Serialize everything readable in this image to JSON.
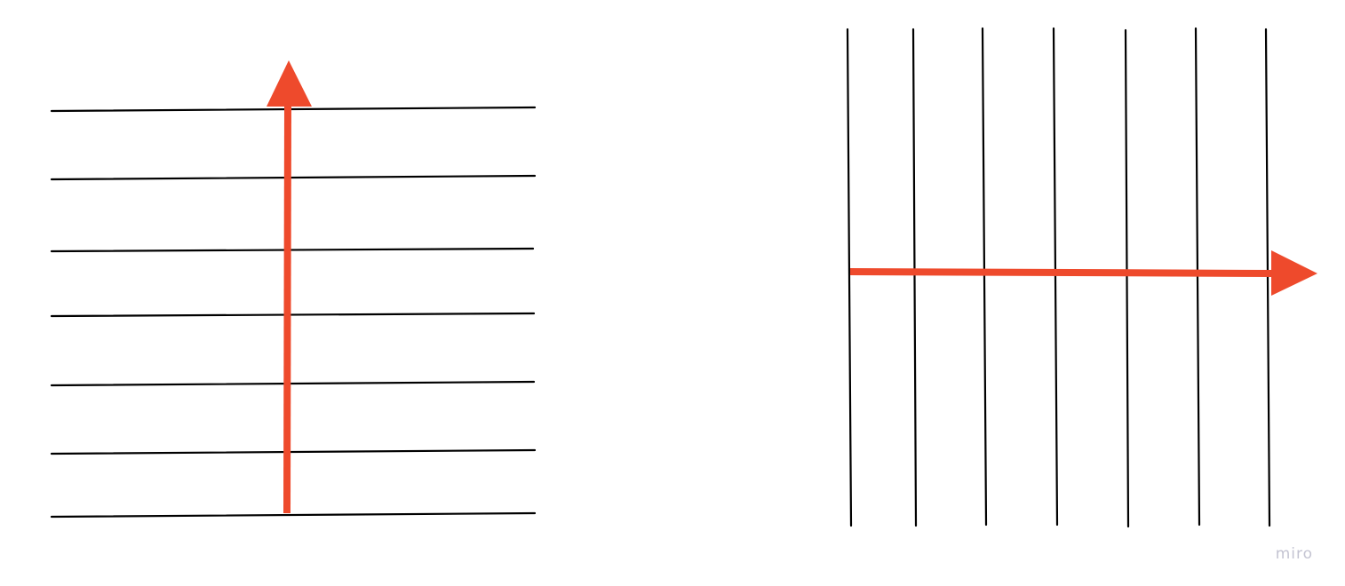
{
  "diagram": {
    "colors": {
      "line": "#000000",
      "arrow": "#ee4a2c",
      "background": "#ffffff"
    },
    "left_panel": {
      "line_orientation": "horizontal",
      "line_count": 7,
      "arrow_direction": "up"
    },
    "right_panel": {
      "line_orientation": "vertical",
      "line_count": 7,
      "arrow_direction": "right"
    }
  },
  "watermark": {
    "text": "miro"
  }
}
